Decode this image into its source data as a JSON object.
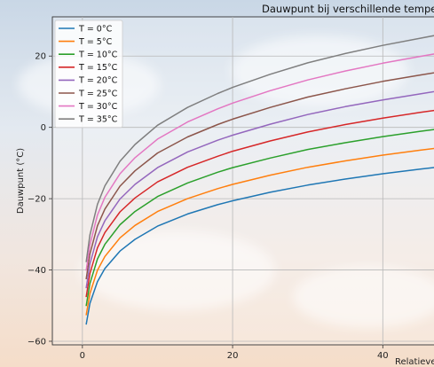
{
  "chart_data": {
    "type": "line",
    "title": "Dauwpunt bij verschillende temperaturen",
    "xlabel": "Relatieve luchtvochtigheid (%)",
    "ylabel": "Dauwpunt (°C)",
    "x": [
      0.5,
      1,
      2,
      3,
      5,
      7,
      10,
      14,
      18,
      20,
      25,
      30,
      35,
      40,
      45,
      48
    ],
    "xlim": [
      -4,
      48
    ],
    "ylim": [
      -61,
      31
    ],
    "xticks": [
      0,
      20,
      40
    ],
    "yticks": [
      -60,
      -40,
      -20,
      0,
      20
    ],
    "grid": true,
    "legend_position": "top-left",
    "series": [
      {
        "name": "T = 0°C",
        "color": "#1f77b4",
        "values": [
          -55.3,
          -49.4,
          -43.3,
          -39.6,
          -34.7,
          -31.4,
          -27.7,
          -24.3,
          -21.7,
          -20.6,
          -18.2,
          -16.2,
          -14.5,
          -13.0,
          -11.7,
          -11.0
        ]
      },
      {
        "name": "T = 5°C",
        "color": "#ff7f0e",
        "values": [
          -52.7,
          -46.6,
          -40.1,
          -36.2,
          -31.0,
          -27.5,
          -23.6,
          -20.0,
          -17.2,
          -16.0,
          -13.4,
          -11.2,
          -9.4,
          -7.8,
          -6.4,
          -5.6
        ]
      },
      {
        "name": "T = 10°C",
        "color": "#2ca02c",
        "values": [
          -50.1,
          -43.8,
          -36.9,
          -32.8,
          -27.3,
          -23.6,
          -19.4,
          -15.6,
          -12.6,
          -11.3,
          -8.6,
          -6.2,
          -4.3,
          -2.6,
          -1.1,
          -0.3
        ]
      },
      {
        "name": "T = 15°C",
        "color": "#d62728",
        "values": [
          -47.6,
          -41.0,
          -33.8,
          -29.5,
          -23.7,
          -19.8,
          -15.3,
          -11.2,
          -8.1,
          -6.7,
          -3.8,
          -1.3,
          0.8,
          2.6,
          4.2,
          5.1
        ]
      },
      {
        "name": "T = 20°C",
        "color": "#9467bd",
        "values": [
          -45.1,
          -38.3,
          -30.7,
          -26.2,
          -20.1,
          -16.0,
          -11.3,
          -6.9,
          -3.6,
          -2.2,
          0.9,
          3.6,
          5.8,
          7.7,
          9.4,
          10.4
        ]
      },
      {
        "name": "T = 25°C",
        "color": "#8c564b",
        "values": [
          -42.6,
          -35.5,
          -27.6,
          -22.9,
          -16.5,
          -12.2,
          -7.2,
          -2.7,
          0.8,
          2.3,
          5.6,
          8.5,
          10.8,
          12.9,
          14.7,
          15.7
        ]
      },
      {
        "name": "T = 30°C",
        "color": "#e377c2",
        "values": [
          -40.2,
          -32.9,
          -24.6,
          -19.6,
          -13.0,
          -8.5,
          -3.3,
          1.5,
          5.2,
          6.8,
          10.3,
          13.3,
          15.8,
          18.0,
          19.9,
          21.0
        ]
      },
      {
        "name": "T = 35°C",
        "color": "#7f7f7f",
        "values": [
          -37.8,
          -30.2,
          -21.6,
          -16.4,
          -9.5,
          -4.8,
          0.6,
          5.6,
          9.5,
          11.2,
          14.9,
          18.1,
          20.7,
          23.0,
          25.0,
          26.2
        ]
      }
    ]
  }
}
